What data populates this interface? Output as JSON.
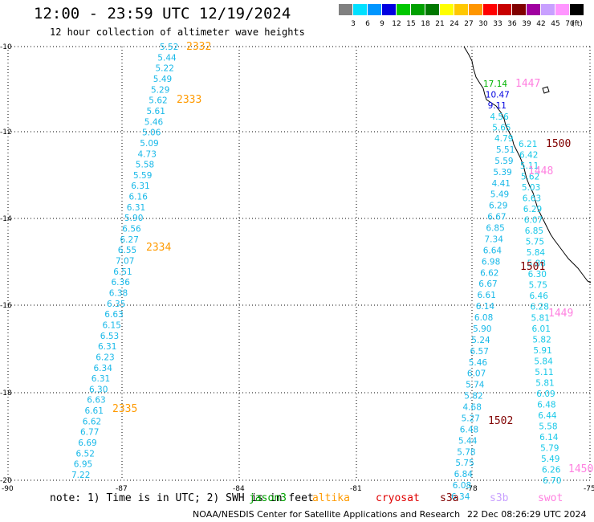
{
  "header": {
    "title": "12:00 - 23:59 UTC 12/19/2024",
    "subtitle": "12 hour collection of altimeter wave heights"
  },
  "legend": {
    "unit": "(ft)",
    "bins": [
      {
        "label": "3",
        "color": "#808080"
      },
      {
        "label": "6",
        "color": "#00e0ff"
      },
      {
        "label": "9",
        "color": "#0096ff"
      },
      {
        "label": "12",
        "color": "#0000e0"
      },
      {
        "label": "15",
        "color": "#00c800"
      },
      {
        "label": "18",
        "color": "#00a000"
      },
      {
        "label": "21",
        "color": "#007800"
      },
      {
        "label": "24",
        "color": "#ffff00"
      },
      {
        "label": "27",
        "color": "#ffc800"
      },
      {
        "label": "30",
        "color": "#ff9600"
      },
      {
        "label": "33",
        "color": "#ff0000"
      },
      {
        "label": "36",
        "color": "#c80000"
      },
      {
        "label": "39",
        "color": "#800000"
      },
      {
        "label": "42",
        "color": "#a000a0"
      },
      {
        "label": "45",
        "color": "#c8a0ff"
      },
      {
        "label": "70",
        "color": "#ff96ff"
      },
      {
        "label": "",
        "color": "#000000"
      }
    ]
  },
  "map": {
    "lat_labels": [
      "-10",
      "-12",
      "-14",
      "-16",
      "-18",
      "-20"
    ],
    "lon_labels": [
      "-90",
      "-87",
      "-84",
      "-81",
      "-78",
      "-75"
    ],
    "grid": "dotted",
    "coastline": "South America west coast"
  },
  "tracks": {
    "track_2332_series": [
      {
        "v": "5.52"
      },
      {
        "v": "5.44"
      },
      {
        "v": "5.22"
      },
      {
        "v": "5.49"
      },
      {
        "v": "5.29"
      },
      {
        "v": "5.62"
      },
      {
        "v": "5.61"
      },
      {
        "v": "5.46"
      },
      {
        "v": "5.06"
      },
      {
        "v": "5.09"
      },
      {
        "v": "4.73"
      },
      {
        "v": "5.58"
      },
      {
        "v": "5.59"
      },
      {
        "v": "6.31"
      },
      {
        "v": "6.16"
      },
      {
        "v": "6.31"
      },
      {
        "v": "5.90"
      },
      {
        "v": "6.56"
      },
      {
        "v": "6.27"
      },
      {
        "v": "6.55"
      },
      {
        "v": "7.07"
      },
      {
        "v": "6.51"
      },
      {
        "v": "6.36"
      },
      {
        "v": "6.38"
      },
      {
        "v": "6.35"
      },
      {
        "v": "6.63"
      },
      {
        "v": "6.15"
      },
      {
        "v": "6.53"
      },
      {
        "v": "6.31"
      },
      {
        "v": "6.23"
      },
      {
        "v": "6.34"
      },
      {
        "v": "6.31"
      },
      {
        "v": "6.30"
      },
      {
        "v": "6.63"
      },
      {
        "v": "6.61"
      },
      {
        "v": "6.62"
      },
      {
        "v": "6.77"
      },
      {
        "v": "6.69"
      },
      {
        "v": "6.52"
      },
      {
        "v": "6.95"
      },
      {
        "v": "7.22"
      }
    ],
    "track_west_coastal": [
      {
        "v": "5.51"
      },
      {
        "v": "5.59"
      },
      {
        "v": "5.39"
      },
      {
        "v": "4.41"
      },
      {
        "v": "5.49"
      },
      {
        "v": "6.29"
      },
      {
        "v": "6.67"
      },
      {
        "v": "6.85"
      },
      {
        "v": "7.34"
      },
      {
        "v": "6.64"
      },
      {
        "v": "6.98"
      },
      {
        "v": "6.62"
      },
      {
        "v": "6.67"
      },
      {
        "v": "6.61"
      },
      {
        "v": "6.14"
      },
      {
        "v": "6.08"
      },
      {
        "v": "5.90"
      },
      {
        "v": "5.24"
      },
      {
        "v": "6.57"
      },
      {
        "v": "5.46"
      },
      {
        "v": "6.07"
      },
      {
        "v": "5.74"
      },
      {
        "v": "5.82"
      },
      {
        "v": "4.68"
      },
      {
        "v": "5.27"
      },
      {
        "v": "6.48"
      },
      {
        "v": "5.44"
      },
      {
        "v": "5.78"
      },
      {
        "v": "5.75"
      },
      {
        "v": "6.84"
      },
      {
        "v": "6.08"
      },
      {
        "v": "6.34"
      }
    ],
    "track_east_coastal": [
      {
        "v": "6.21"
      },
      {
        "v": "6.42"
      },
      {
        "v": "5.11"
      },
      {
        "v": "5.62"
      },
      {
        "v": "5.03"
      },
      {
        "v": "6.63"
      },
      {
        "v": "6.29"
      },
      {
        "v": "6.07"
      },
      {
        "v": "6.85"
      },
      {
        "v": "5.75"
      },
      {
        "v": "5.84"
      },
      {
        "v": "5.88"
      },
      {
        "v": "6.30"
      },
      {
        "v": "5.75"
      },
      {
        "v": "6.46"
      },
      {
        "v": "6.28"
      },
      {
        "v": "5.81"
      },
      {
        "v": "6.01"
      },
      {
        "v": "5.82"
      },
      {
        "v": "5.91"
      },
      {
        "v": "5.84"
      },
      {
        "v": "5.11"
      },
      {
        "v": "5.81"
      },
      {
        "v": "6.09"
      },
      {
        "v": "6.48"
      },
      {
        "v": "6.44"
      },
      {
        "v": "5.58"
      },
      {
        "v": "6.14"
      },
      {
        "v": "5.79"
      },
      {
        "v": "5.49"
      },
      {
        "v": "6.26"
      },
      {
        "v": "6.70"
      }
    ],
    "track_nearshore_top": [
      {
        "v": "17.14",
        "color": "#00b400"
      },
      {
        "v": "10.47",
        "color": "#0000e0"
      },
      {
        "v": "9.11",
        "color": "#0000e0"
      },
      {
        "v": "4.56",
        "color": "#18c8e8"
      },
      {
        "v": "5.65",
        "color": "#18c8e8"
      },
      {
        "v": "4.79",
        "color": "#18c8e8"
      }
    ],
    "pass_labels": [
      {
        "id": "2332",
        "color": "#ff9a00"
      },
      {
        "id": "2333",
        "color": "#ff9a00"
      },
      {
        "id": "2334",
        "color": "#ff9a00"
      },
      {
        "id": "2335",
        "color": "#ff9a00"
      },
      {
        "id": "1447",
        "color": "#ff80e0"
      },
      {
        "id": "1448",
        "color": "#ff80e0"
      },
      {
        "id": "1449",
        "color": "#ff80e0"
      },
      {
        "id": "1450",
        "color": "#ff80e0"
      },
      {
        "id": "1500",
        "color": "#800000"
      },
      {
        "id": "1501",
        "color": "#800000"
      },
      {
        "id": "1502",
        "color": "#800000"
      }
    ]
  },
  "footer": {
    "note": "note: 1) Time is in UTC; 2) SWH is in feet",
    "missions": [
      {
        "name": "jason3",
        "color": "#00a000"
      },
      {
        "name": "altika",
        "color": "#ff9a00"
      },
      {
        "name": "cryosat",
        "color": "#e00000"
      },
      {
        "name": "s3a",
        "color": "#800000"
      },
      {
        "name": "s3b",
        "color": "#c8a0ff"
      },
      {
        "name": "swot",
        "color": "#ff80e0"
      }
    ],
    "credit": "NOAA/NESDIS Center for Satellite Applications and Research",
    "timestamp": "22 Dec 08:26:29 UTC 2024"
  }
}
